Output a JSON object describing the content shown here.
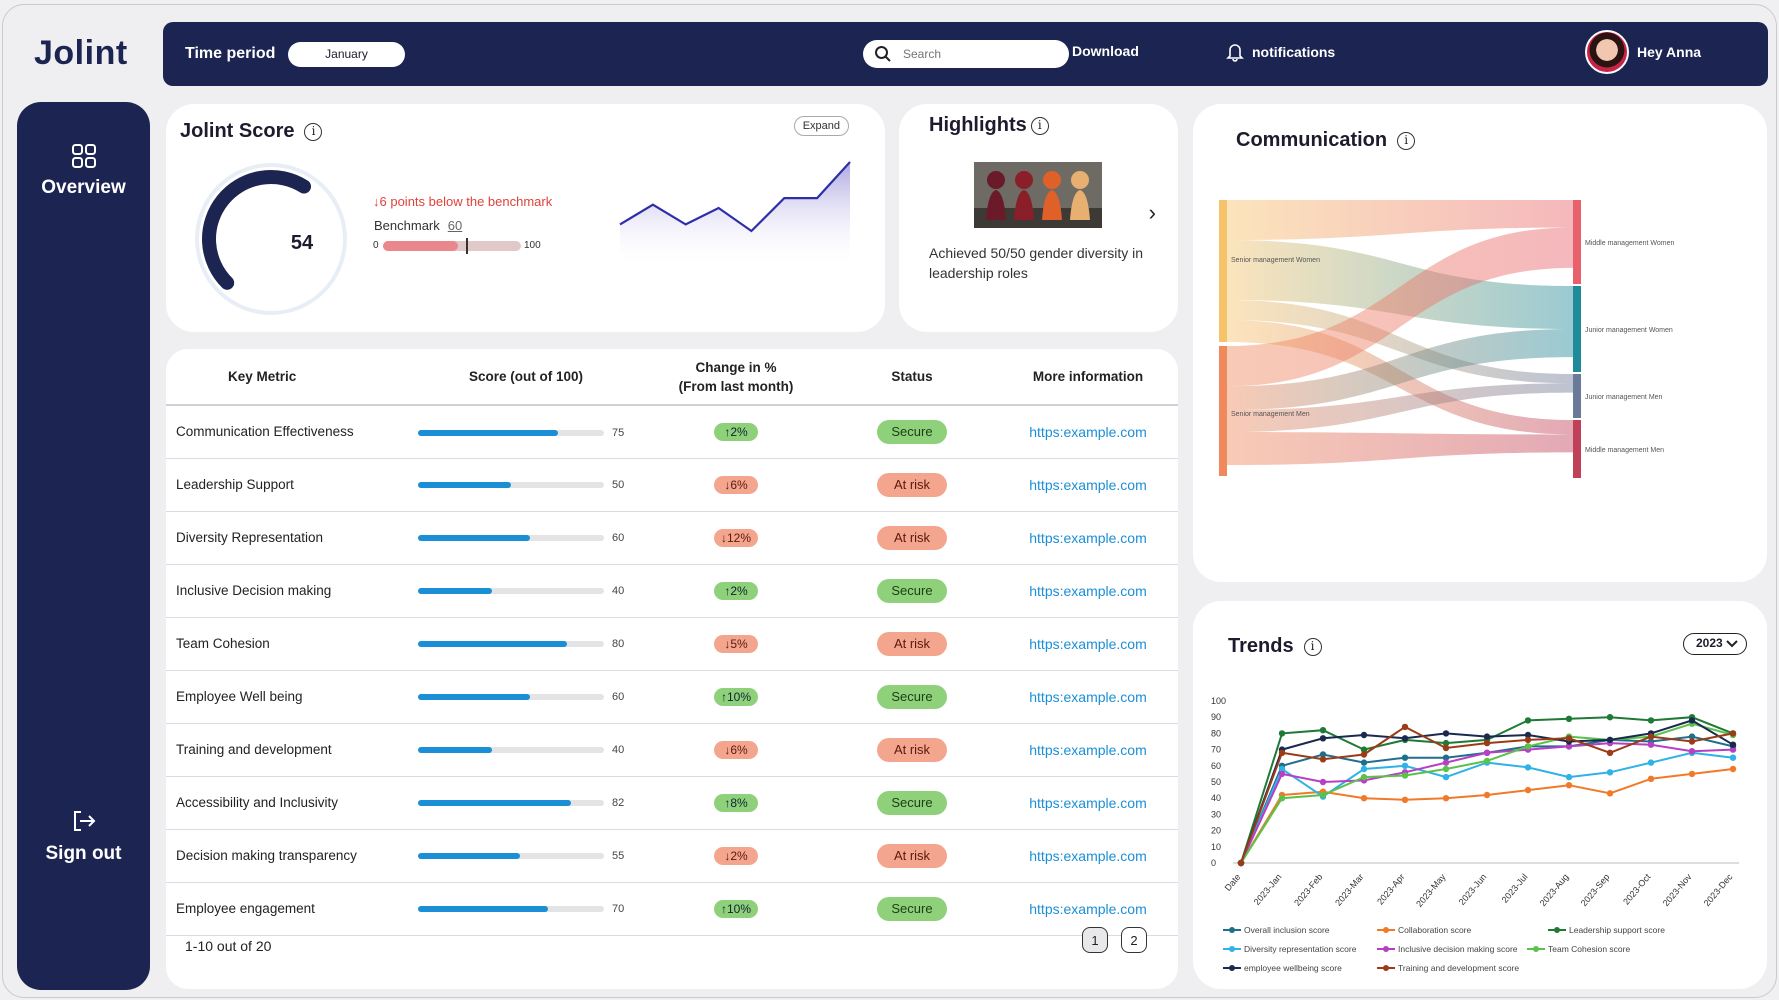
{
  "app": {
    "logo": "Jolint"
  },
  "topbar": {
    "time_period_label": "Time period",
    "time_period_value": "January",
    "search_placeholder": "Search",
    "download_label": "Download",
    "notifications_label": "notifications",
    "greeting": "Hey Anna"
  },
  "sidebar": {
    "overview_label": "Overview",
    "signout_label": "Sign out"
  },
  "score_card": {
    "title": "Jolint Score",
    "score": "54",
    "score_value": 54,
    "expand_label": "Expand",
    "below_text": "6  points below the benchmark",
    "benchmark_label": "Benchmark",
    "benchmark_value": "60",
    "bar_min": "0",
    "bar_max": "100",
    "sparkline": [
      0.45,
      0.75,
      0.45,
      0.7,
      0.35,
      0.85,
      0.85,
      1.4
    ]
  },
  "highlights": {
    "title": "Highlights",
    "text": "Achieved 50/50 gender diversity in leadership roles"
  },
  "metrics_table": {
    "headers": {
      "metric": "Key Metric",
      "score": "Score (out of 100)",
      "change_1": "Change in %",
      "change_2": "(From last month)",
      "status": "Status",
      "info": "More information"
    },
    "rows": [
      {
        "name": "Communication Effectiveness",
        "score": 75,
        "score_text": "75",
        "change": "2%",
        "dir": "up",
        "status": "Secure",
        "link": "https:example.com"
      },
      {
        "name": "Leadership Support",
        "score": 50,
        "score_text": "50",
        "change": "6%",
        "dir": "down",
        "status": "At risk",
        "link": "https:example.com"
      },
      {
        "name": "Diversity Representation",
        "score": 60,
        "score_text": "60",
        "change": "12%",
        "dir": "down",
        "status": "At risk",
        "link": "https:example.com"
      },
      {
        "name": "Inclusive Decision making",
        "score": 40,
        "score_text": "40",
        "change": "2%",
        "dir": "up",
        "status": "Secure",
        "link": "https:example.com"
      },
      {
        "name": "Team Cohesion",
        "score": 80,
        "score_text": "80",
        "change": "5%",
        "dir": "down",
        "status": "At risk",
        "link": "https:example.com"
      },
      {
        "name": "Employee Well being",
        "score": 60,
        "score_text": "60",
        "change": "10%",
        "dir": "up",
        "status": "Secure",
        "link": "https:example.com"
      },
      {
        "name": "Training and development",
        "score": 40,
        "score_text": "40",
        "change": "6%",
        "dir": "down",
        "status": "At risk",
        "link": "https:example.com"
      },
      {
        "name": "Accessibility and Inclusivity",
        "score": 82,
        "score_text": "82",
        "change": "8%",
        "dir": "up",
        "status": "Secure",
        "link": "https:example.com"
      },
      {
        "name": "Decision making transparency",
        "score": 55,
        "score_text": "55",
        "change": "2%",
        "dir": "down",
        "status": "At risk",
        "link": "https:example.com"
      },
      {
        "name": "Employee engagement",
        "score": 70,
        "score_text": "70",
        "change": "10%",
        "dir": "up",
        "status": "Secure",
        "link": "https:example.com"
      }
    ],
    "pagination": {
      "label": "1-10 out of 20",
      "pages": [
        "1",
        "2"
      ]
    }
  },
  "communication": {
    "title": "Communication",
    "sources": [
      "Senior management Women",
      "Senior management Men"
    ],
    "targets": [
      "Middle management Women",
      "Junior management Women",
      "Junior management Men",
      "Middle management Men"
    ],
    "colors": {
      "sources": [
        "#f7c36a",
        "#f08a5d"
      ],
      "targets": [
        "#e8606a",
        "#1f8a9a",
        "#6c7a99",
        "#c0405a"
      ]
    }
  },
  "trends": {
    "title": "Trends",
    "year": "2023",
    "chart_data": {
      "type": "line",
      "categories": [
        "Date",
        "2023-Jan",
        "2023-Feb",
        "2023-Mar",
        "2023-Apr",
        "2023-May",
        "2023-Jun",
        "2023-Jul",
        "2023-Aug",
        "2023-Sep",
        "2023-Oct",
        "2023-Nov",
        "2023-Dec"
      ],
      "ylim": [
        0,
        100
      ],
      "yticks": [
        0,
        10,
        20,
        30,
        40,
        50,
        60,
        70,
        80,
        90,
        100
      ],
      "series": [
        {
          "name": "Overall inclusion score",
          "color": "#1f6f8b",
          "values": [
            0,
            60,
            67,
            62,
            65,
            65,
            68,
            72,
            72,
            76,
            75,
            78,
            72
          ]
        },
        {
          "name": "Collaboration score",
          "color": "#f07a2a",
          "values": [
            0,
            42,
            44,
            40,
            39,
            40,
            42,
            45,
            48,
            43,
            52,
            55,
            58
          ]
        },
        {
          "name": "Leadership support score",
          "color": "#1e7a34",
          "values": [
            0,
            80,
            82,
            70,
            76,
            74,
            76,
            88,
            89,
            90,
            88,
            90,
            80
          ]
        },
        {
          "name": "Diversity representation score",
          "color": "#2fb2e6",
          "values": [
            0,
            58,
            41,
            58,
            60,
            53,
            62,
            59,
            53,
            56,
            62,
            68,
            65
          ]
        },
        {
          "name": "Inclusive decision making score",
          "color": "#b63fc4",
          "values": [
            0,
            55,
            50,
            51,
            56,
            62,
            68,
            70,
            72,
            74,
            73,
            69,
            70
          ]
        },
        {
          "name": "Team Cohesion score",
          "color": "#5ac24a",
          "values": [
            0,
            40,
            42,
            53,
            54,
            58,
            63,
            72,
            78,
            76,
            78,
            86,
            79
          ]
        },
        {
          "name": "employee wellbeing score",
          "color": "#1a2a4f",
          "values": [
            0,
            70,
            77,
            79,
            77,
            80,
            78,
            79,
            75,
            76,
            80,
            88,
            73
          ]
        },
        {
          "name": "Training and development score",
          "color": "#9b3b17",
          "values": [
            0,
            68,
            64,
            67,
            84,
            71,
            74,
            76,
            77,
            68,
            78,
            75,
            80
          ]
        }
      ]
    }
  }
}
